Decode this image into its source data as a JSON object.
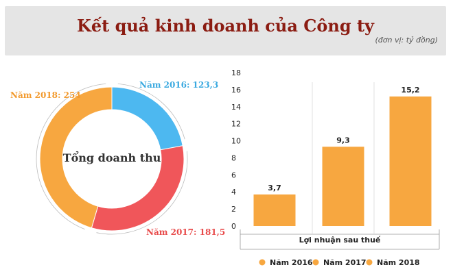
{
  "header": {
    "title": "Kết quả kinh doanh của Công ty",
    "unit": "(đơn vị: tỷ đồng)"
  },
  "colors": {
    "y2016": "#4db8f0",
    "y2017": "#f0565a",
    "y2018": "#f7a740",
    "bar": "#f7a740",
    "label2016": "#3aa9e0",
    "label2017": "#e84b4b",
    "label2018": "#f29a2e"
  },
  "chart_data": [
    {
      "type": "pie",
      "title": "Tổng doanh thu",
      "donut": true,
      "slices": [
        {
          "label": "Năm 2016: 123,3",
          "value": 123.3,
          "color": "#4db8f0"
        },
        {
          "label": "Năm 2017: 181,5",
          "value": 181.5,
          "color": "#f0565a"
        },
        {
          "label": "Năm 2018: 254",
          "value": 254,
          "color": "#f7a740"
        }
      ]
    },
    {
      "type": "bar",
      "categories": [
        "Năm 2016",
        "Năm 2017",
        "Năm 2018"
      ],
      "values": [
        3.7,
        9.3,
        15.2
      ],
      "value_labels": [
        "3,7",
        "9,3",
        "15,2"
      ],
      "xlabel": "Lợi nhuận sau thuế",
      "ylim": [
        0,
        18
      ],
      "yticks": [
        "0",
        "2",
        "4",
        "6",
        "8",
        "10",
        "12",
        "14",
        "16",
        "18"
      ],
      "legend": [
        "Năm 2016",
        "Năm 2017",
        "Năm 2018"
      ],
      "legend_position": "bottom",
      "color": "#f7a740"
    }
  ]
}
